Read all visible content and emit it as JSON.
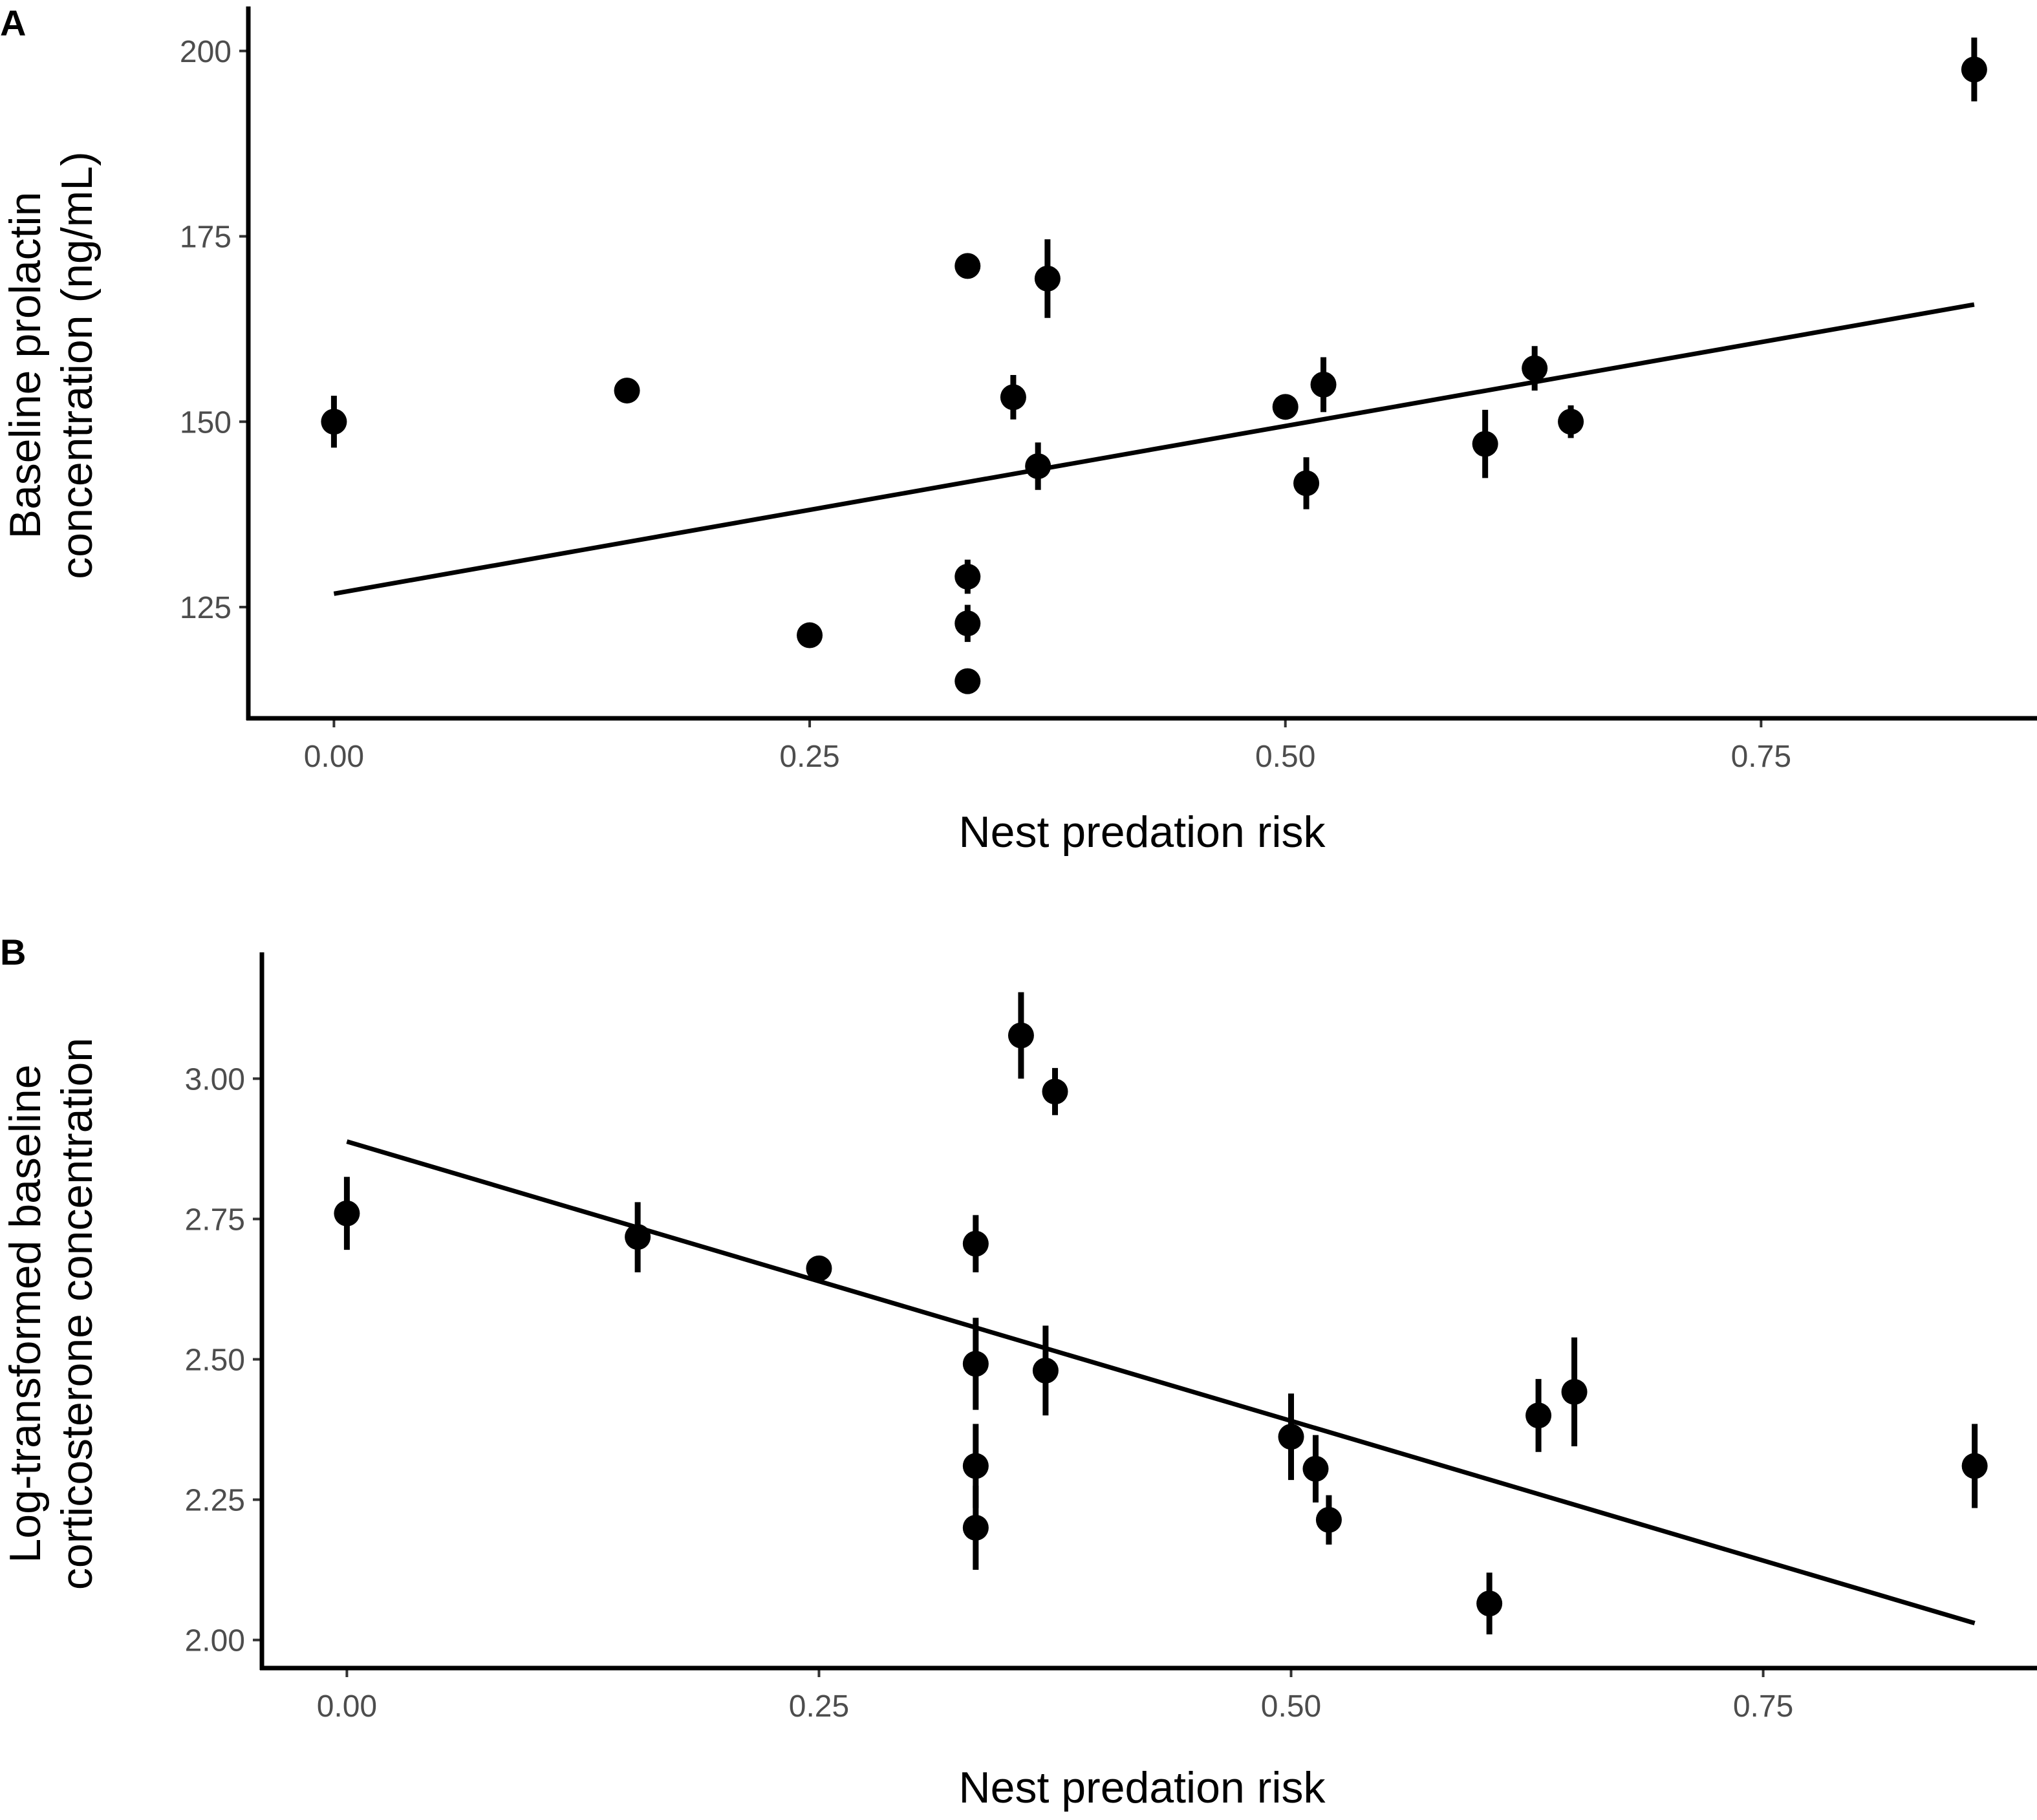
{
  "chart_data": [
    {
      "panel_label": "A",
      "type": "scatter",
      "title": "",
      "xlabel": "Nest predation risk",
      "ylabel_lines": [
        "Baseline prolactin",
        "concentration (ng/mL)"
      ],
      "xlim": [
        -0.045,
        0.895
      ],
      "ylim": [
        110,
        206
      ],
      "xticks": [
        0.0,
        0.25,
        0.5,
        0.75
      ],
      "xtick_labels": [
        "0.00",
        "0.25",
        "0.50",
        "0.75"
      ],
      "yticks": [
        125,
        150,
        175,
        200
      ],
      "ytick_labels": [
        "125",
        "150",
        "175",
        "200"
      ],
      "points": [
        {
          "x": 0.0,
          "y": 150.0,
          "lo": 146.5,
          "hi": 153.5
        },
        {
          "x": 0.154,
          "y": 154.2,
          "lo": 154.2,
          "hi": 154.2
        },
        {
          "x": 0.25,
          "y": 121.2,
          "lo": 121.2,
          "hi": 121.2
        },
        {
          "x": 0.333,
          "y": 171.0,
          "lo": 171.0,
          "hi": 171.0
        },
        {
          "x": 0.333,
          "y": 129.1,
          "lo": 126.8,
          "hi": 131.4
        },
        {
          "x": 0.333,
          "y": 122.8,
          "lo": 120.3,
          "hi": 125.3
        },
        {
          "x": 0.333,
          "y": 115.0,
          "lo": 115.0,
          "hi": 115.0
        },
        {
          "x": 0.357,
          "y": 153.3,
          "lo": 150.3,
          "hi": 156.3
        },
        {
          "x": 0.37,
          "y": 144.0,
          "lo": 140.8,
          "hi": 147.2
        },
        {
          "x": 0.375,
          "y": 169.3,
          "lo": 164.0,
          "hi": 174.6
        },
        {
          "x": 0.5,
          "y": 152.0,
          "lo": 152.0,
          "hi": 152.0
        },
        {
          "x": 0.511,
          "y": 141.7,
          "lo": 138.2,
          "hi": 145.2
        },
        {
          "x": 0.52,
          "y": 155.0,
          "lo": 151.3,
          "hi": 158.7
        },
        {
          "x": 0.605,
          "y": 147.0,
          "lo": 142.4,
          "hi": 151.6
        },
        {
          "x": 0.631,
          "y": 157.2,
          "lo": 154.2,
          "hi": 160.2
        },
        {
          "x": 0.65,
          "y": 150.0,
          "lo": 147.8,
          "hi": 152.2
        },
        {
          "x": 0.862,
          "y": 197.5,
          "lo": 193.2,
          "hi": 201.8
        }
      ],
      "fit_line": {
        "x": [
          0.0,
          0.862
        ],
        "y": [
          126.8,
          165.8
        ]
      }
    },
    {
      "panel_label": "B",
      "type": "scatter",
      "title": "",
      "xlabel": "Nest predation risk",
      "ylabel_lines": [
        "Log-transformed baseline",
        "corticosterone concentration"
      ],
      "xlim": [
        -0.045,
        0.895
      ],
      "ylim": [
        1.95,
        3.225
      ],
      "xticks": [
        0.0,
        0.25,
        0.5,
        0.75
      ],
      "xtick_labels": [
        "0.00",
        "0.25",
        "0.50",
        "0.75"
      ],
      "yticks": [
        2.0,
        2.25,
        2.5,
        2.75,
        3.0
      ],
      "ytick_labels": [
        "2.00",
        "2.25",
        "2.50",
        "2.75",
        "3.00"
      ],
      "points": [
        {
          "x": 0.0,
          "y": 2.76,
          "lo": 2.695,
          "hi": 2.825
        },
        {
          "x": 0.154,
          "y": 2.718,
          "lo": 2.655,
          "hi": 2.78
        },
        {
          "x": 0.25,
          "y": 2.662,
          "lo": 2.64,
          "hi": 2.684
        },
        {
          "x": 0.333,
          "y": 2.706,
          "lo": 2.655,
          "hi": 2.757
        },
        {
          "x": 0.333,
          "y": 2.492,
          "lo": 2.41,
          "hi": 2.574
        },
        {
          "x": 0.333,
          "y": 2.31,
          "lo": 2.235,
          "hi": 2.385
        },
        {
          "x": 0.333,
          "y": 2.2,
          "lo": 2.125,
          "hi": 2.275
        },
        {
          "x": 0.357,
          "y": 3.077,
          "lo": 3.0,
          "hi": 3.154
        },
        {
          "x": 0.37,
          "y": 2.48,
          "lo": 2.4,
          "hi": 2.56
        },
        {
          "x": 0.375,
          "y": 2.977,
          "lo": 2.935,
          "hi": 3.019
        },
        {
          "x": 0.5,
          "y": 2.362,
          "lo": 2.285,
          "hi": 2.439
        },
        {
          "x": 0.513,
          "y": 2.305,
          "lo": 2.245,
          "hi": 2.365
        },
        {
          "x": 0.52,
          "y": 2.214,
          "lo": 2.17,
          "hi": 2.258
        },
        {
          "x": 0.605,
          "y": 2.065,
          "lo": 2.01,
          "hi": 2.12
        },
        {
          "x": 0.631,
          "y": 2.4,
          "lo": 2.335,
          "hi": 2.465
        },
        {
          "x": 0.65,
          "y": 2.442,
          "lo": 2.345,
          "hi": 2.539
        },
        {
          "x": 0.862,
          "y": 2.31,
          "lo": 2.235,
          "hi": 2.385
        }
      ],
      "fit_line": {
        "x": [
          0.0,
          0.862
        ],
        "y": [
          2.888,
          2.03
        ]
      }
    }
  ]
}
